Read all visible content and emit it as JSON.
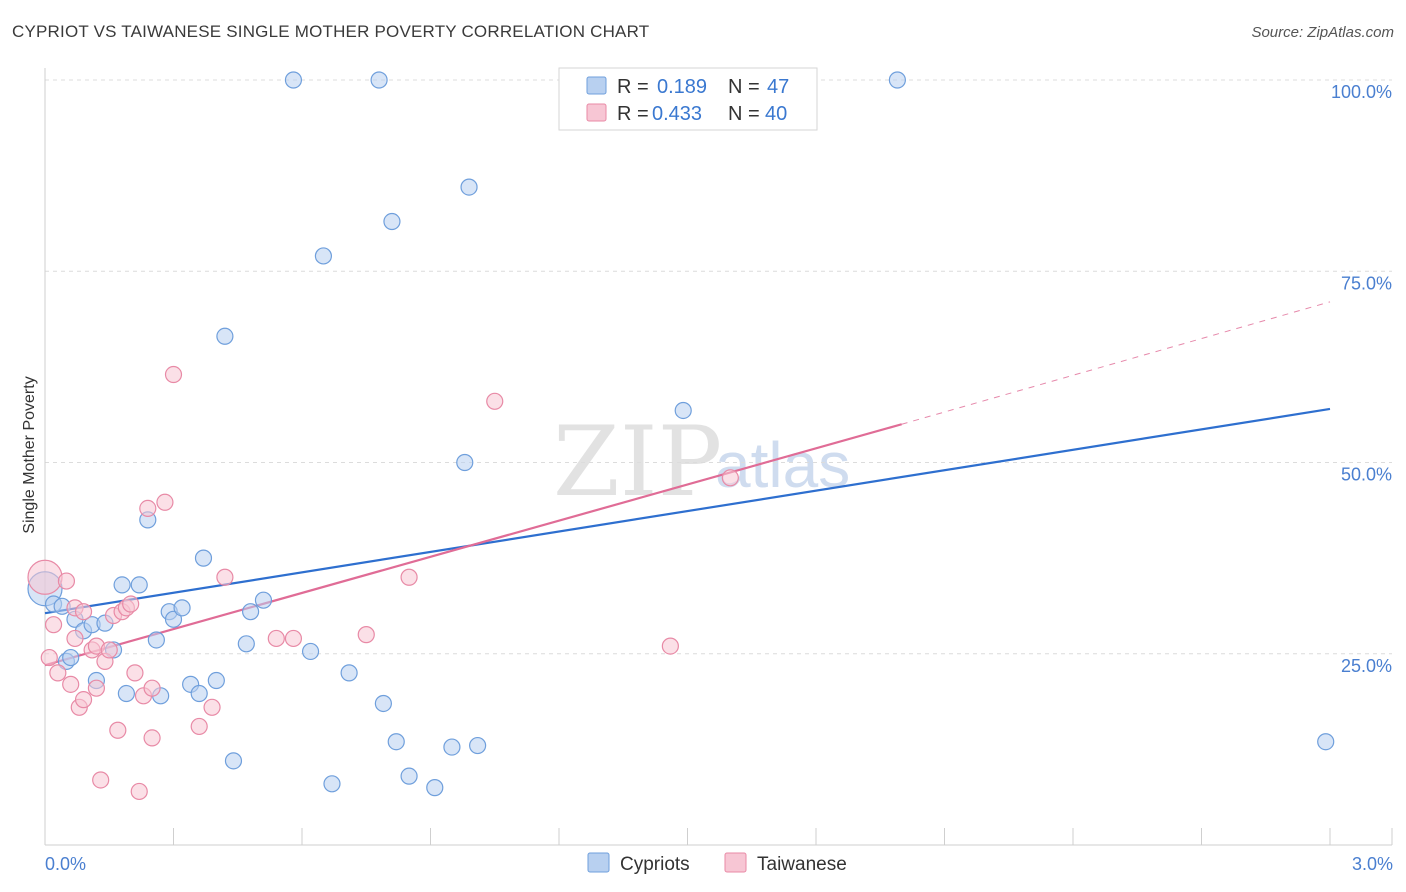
{
  "header": {
    "title": "CYPRIOT VS TAIWANESE SINGLE MOTHER POVERTY CORRELATION CHART",
    "source": "Source: ZipAtlas.com"
  },
  "watermark": {
    "zip": "ZIP",
    "atlas": "atlas"
  },
  "legend": {
    "rows": [
      {
        "r_label": "R =",
        "r_value": "0.189",
        "n_label": "N =",
        "n_value": "47"
      },
      {
        "r_label": "R =",
        "r_value": "0.433",
        "n_label": "N =",
        "n_value": "40"
      }
    ],
    "bottom": [
      "Cypriots",
      "Taiwanese"
    ]
  },
  "colors": {
    "cypriots_fill": "#b8d0f0",
    "cypriots_stroke": "#6f9fdc",
    "cypriots_line": "#2e6fcf",
    "taiwanese_fill": "#f7c6d4",
    "taiwanese_stroke": "#e88aa6",
    "taiwanese_line": "#e06c96",
    "grid": "#dcdcdc",
    "tick_text": "#4a7fd0"
  },
  "chart_data": {
    "type": "scatter",
    "title": "CYPRIOT VS TAIWANESE SINGLE MOTHER POVERTY CORRELATION CHART",
    "xlabel": "",
    "ylabel": "Single Mother Poverty",
    "xlim": [
      0,
      3.0
    ],
    "ylim": [
      0,
      100
    ],
    "x_tick_labels": [
      "0.0%",
      "3.0%"
    ],
    "y_ticks": [
      25,
      50,
      75,
      100
    ],
    "y_tick_labels": [
      "25.0%",
      "50.0%",
      "75.0%",
      "100.0%"
    ],
    "grid": true,
    "series": [
      {
        "name": "Cypriots",
        "r": 0.189,
        "n": 47,
        "trend": {
          "x0": 0.0,
          "y0": 30.3,
          "x1": 3.0,
          "y1": 57.0
        },
        "points": [
          [
            0.0,
            33.5
          ],
          [
            0.02,
            31.5
          ],
          [
            0.04,
            31.2
          ],
          [
            0.05,
            24.0
          ],
          [
            0.06,
            24.5
          ],
          [
            0.07,
            29.5
          ],
          [
            0.09,
            28.0
          ],
          [
            0.11,
            28.8
          ],
          [
            0.12,
            21.5
          ],
          [
            0.14,
            29.0
          ],
          [
            0.16,
            25.5
          ],
          [
            0.18,
            34.0
          ],
          [
            0.19,
            19.8
          ],
          [
            0.22,
            34.0
          ],
          [
            0.24,
            42.5
          ],
          [
            0.26,
            26.8
          ],
          [
            0.27,
            19.5
          ],
          [
            0.29,
            30.5
          ],
          [
            0.3,
            29.5
          ],
          [
            0.32,
            31.0
          ],
          [
            0.34,
            21.0
          ],
          [
            0.36,
            19.8
          ],
          [
            0.37,
            37.5
          ],
          [
            0.4,
            21.5
          ],
          [
            0.42,
            66.5
          ],
          [
            0.44,
            11.0
          ],
          [
            0.47,
            26.3
          ],
          [
            0.48,
            30.5
          ],
          [
            0.51,
            32.0
          ],
          [
            0.58,
            100.0
          ],
          [
            0.62,
            25.3
          ],
          [
            0.65,
            77.0
          ],
          [
            0.67,
            8.0
          ],
          [
            0.71,
            22.5
          ],
          [
            0.78,
            100.0
          ],
          [
            0.79,
            18.5
          ],
          [
            0.81,
            81.5
          ],
          [
            0.82,
            13.5
          ],
          [
            0.85,
            9.0
          ],
          [
            0.91,
            7.5
          ],
          [
            0.95,
            12.8
          ],
          [
            0.98,
            50.0
          ],
          [
            0.99,
            86.0
          ],
          [
            1.01,
            13.0
          ],
          [
            1.49,
            56.8
          ],
          [
            1.99,
            100.0
          ],
          [
            2.99,
            13.5
          ]
        ]
      },
      {
        "name": "Taiwanese",
        "r": 0.433,
        "n": 40,
        "trend": {
          "x0": 0.0,
          "y0": 23.5,
          "x1": 2.0,
          "y1": 55.0,
          "dashed_to": {
            "x": 3.0,
            "y": 71.0
          }
        },
        "points": [
          [
            0.0,
            35.0
          ],
          [
            0.01,
            24.5
          ],
          [
            0.02,
            28.8
          ],
          [
            0.03,
            22.5
          ],
          [
            0.05,
            34.5
          ],
          [
            0.06,
            21.0
          ],
          [
            0.07,
            31.0
          ],
          [
            0.07,
            27.0
          ],
          [
            0.08,
            18.0
          ],
          [
            0.09,
            19.0
          ],
          [
            0.09,
            30.5
          ],
          [
            0.11,
            25.5
          ],
          [
            0.12,
            26.0
          ],
          [
            0.12,
            20.5
          ],
          [
            0.13,
            8.5
          ],
          [
            0.14,
            24.0
          ],
          [
            0.15,
            25.5
          ],
          [
            0.16,
            30.0
          ],
          [
            0.17,
            15.0
          ],
          [
            0.18,
            30.5
          ],
          [
            0.19,
            31.0
          ],
          [
            0.2,
            31.5
          ],
          [
            0.21,
            22.5
          ],
          [
            0.22,
            7.0
          ],
          [
            0.23,
            19.5
          ],
          [
            0.24,
            44.0
          ],
          [
            0.25,
            14.0
          ],
          [
            0.25,
            20.5
          ],
          [
            0.28,
            44.8
          ],
          [
            0.3,
            61.5
          ],
          [
            0.36,
            15.5
          ],
          [
            0.39,
            18.0
          ],
          [
            0.42,
            35.0
          ],
          [
            0.54,
            27.0
          ],
          [
            0.58,
            27.0
          ],
          [
            0.75,
            27.5
          ],
          [
            0.85,
            35.0
          ],
          [
            1.05,
            58.0
          ],
          [
            1.6,
            48.0
          ],
          [
            1.46,
            26.0
          ]
        ]
      }
    ]
  }
}
